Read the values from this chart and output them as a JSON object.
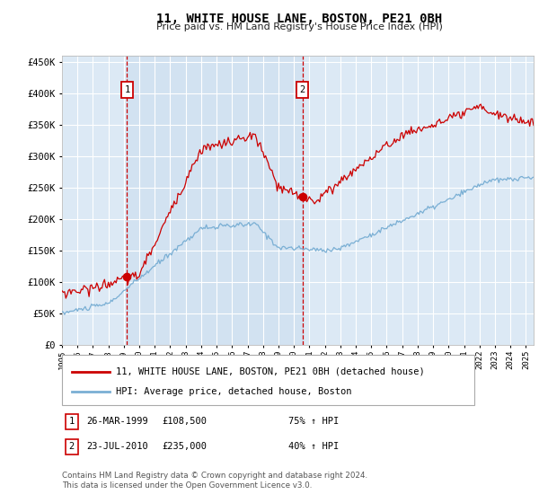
{
  "title": "11, WHITE HOUSE LANE, BOSTON, PE21 0BH",
  "subtitle": "Price paid vs. HM Land Registry's House Price Index (HPI)",
  "background_color": "#ffffff",
  "plot_bg_color": "#dce9f5",
  "grid_color": "#ffffff",
  "red_line_color": "#cc0000",
  "blue_line_color": "#7aafd4",
  "annotation_box_color": "#cc0000",
  "legend_label_red": "11, WHITE HOUSE LANE, BOSTON, PE21 0BH (detached house)",
  "legend_label_blue": "HPI: Average price, detached house, Boston",
  "table_row1": [
    "1",
    "26-MAR-1999",
    "£108,500",
    "75% ↑ HPI"
  ],
  "table_row2": [
    "2",
    "23-JUL-2010",
    "£235,000",
    "40% ↑ HPI"
  ],
  "footer": "Contains HM Land Registry data © Crown copyright and database right 2024.\nThis data is licensed under the Open Government Licence v3.0.",
  "ylim": [
    0,
    460000
  ],
  "yticks": [
    0,
    50000,
    100000,
    150000,
    200000,
    250000,
    300000,
    350000,
    400000,
    450000
  ],
  "xstart": 1995.0,
  "xend": 2025.5,
  "sale1_t": 1999.208,
  "sale1_price": 108500,
  "sale2_t": 2010.542,
  "sale2_price": 235000
}
